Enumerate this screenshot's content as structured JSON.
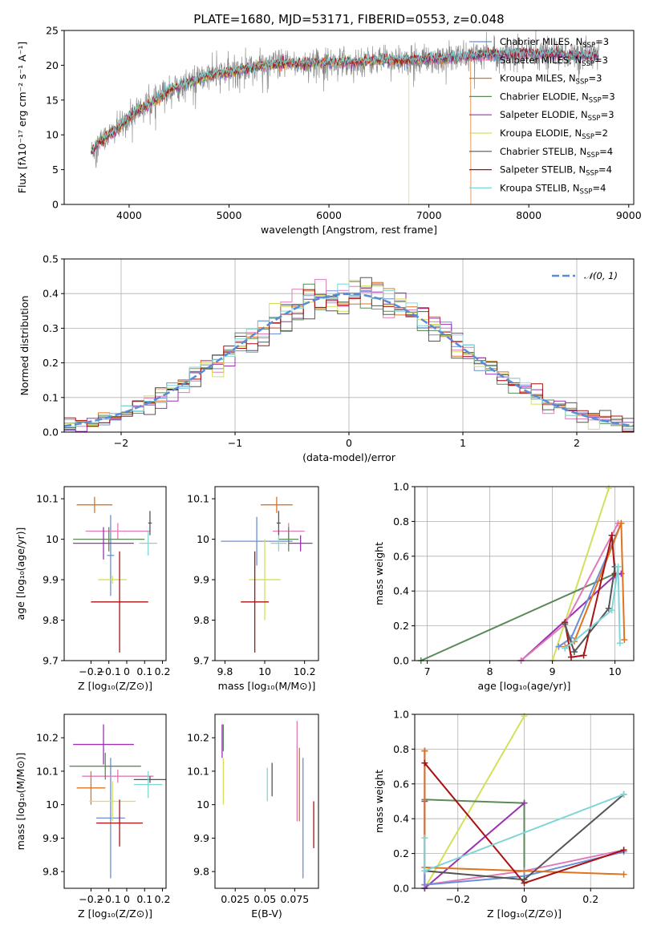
{
  "figure": {
    "title": "PLATE=1680, MJD=53171, FIBERID=0553, z=0.048"
  },
  "colors": {
    "Chabrier MILES": "#6a8fd8",
    "Salpeter MILES": "#e07ab8",
    "Kroupa MILES": "#e0731e",
    "Chabrier ELODIE": "#5a8a5a",
    "Salpeter ELODIE": "#9b30b0",
    "Kroupa ELODIE": "#d4e05a",
    "Chabrier STELIB": "#555555",
    "Salpeter STELIB": "#aa1111",
    "Kroupa STELIB": "#7fd6d6",
    "normal": "#5b8ad8",
    "spectrum": "#808080"
  },
  "chart_data": [
    {
      "id": "spectrum",
      "type": "line",
      "title": "PLATE=1680, MJD=53171, FIBERID=0553, z=0.048",
      "xlabel": "wavelength [Angstrom, rest frame]",
      "ylabel": "Flux [fλ10⁻¹⁷ erg cm⁻² s⁻¹ A⁻¹]",
      "xlim": [
        3350,
        9050
      ],
      "ylim": [
        0,
        25
      ],
      "xticks": [
        4000,
        5000,
        6000,
        7000,
        8000,
        9000
      ],
      "yticks": [
        0,
        5,
        10,
        15,
        20,
        25
      ],
      "grid": false,
      "legend_position": "right",
      "legend": [
        {
          "name": "Chabrier MILES",
          "nssp": "3"
        },
        {
          "name": "Salpeter MILES",
          "nssp": "3"
        },
        {
          "name": "Kroupa MILES",
          "nssp": "3"
        },
        {
          "name": "Chabrier ELODIE",
          "nssp": "3"
        },
        {
          "name": "Salpeter ELODIE",
          "nssp": "3"
        },
        {
          "name": "Kroupa ELODIE",
          "nssp": "2"
        },
        {
          "name": "Chabrier STELIB",
          "nssp": "4"
        },
        {
          "name": "Salpeter STELIB",
          "nssp": "4"
        },
        {
          "name": "Kroupa STELIB",
          "nssp": "4"
        }
      ],
      "continuum": {
        "x": [
          3620,
          3700,
          3800,
          3900,
          4000,
          4100,
          4200,
          4300,
          4400,
          4600,
          4800,
          5000,
          5200,
          5400,
          5600,
          5800,
          6000,
          6200,
          6400,
          6600,
          6800,
          7000,
          7200,
          7400,
          7600,
          7800,
          8000,
          8200,
          8400,
          8600,
          8700
        ],
        "y": [
          7.5,
          9.0,
          10.0,
          11.0,
          12.5,
          13.6,
          14.3,
          15.3,
          16.5,
          17.5,
          18.5,
          19.0,
          19.6,
          20.1,
          20.2,
          20.3,
          20.4,
          20.4,
          20.6,
          20.7,
          20.7,
          20.9,
          21.0,
          21.3,
          21.5,
          21.6,
          21.7,
          21.6,
          21.5,
          21.4,
          21.3
        ]
      },
      "model_cutoffs": {
        "Kroupa ELODIE": 6800,
        "Kroupa MILES": 7420
      }
    },
    {
      "id": "residuals",
      "type": "histogram",
      "xlabel": "(data-model)/error",
      "ylabel": "Normed distribution",
      "xlim": [
        -2.5,
        2.5
      ],
      "ylim": [
        0,
        0.5
      ],
      "xticks": [
        -2,
        -1,
        0,
        1,
        2
      ],
      "yticks": [
        0.0,
        0.1,
        0.2,
        0.3,
        0.4,
        0.5
      ],
      "grid": true,
      "legend_position": "top-right",
      "legend": [
        "𝒩(0, 1)"
      ],
      "bin_width": 0.1
    },
    {
      "id": "age-vs-Z",
      "type": "scatter",
      "xlabel": "Z [log₁₀(Z/Z⊙)]",
      "ylabel": "age  [log₁₀(age/yr)]",
      "xlim": [
        -0.35,
        0.22
      ],
      "ylim": [
        9.7,
        10.13
      ],
      "xticks": [
        -0.2,
        -0.1,
        0.0,
        0.1,
        0.2
      ],
      "yticks": [
        9.7,
        9.8,
        9.9,
        10.0,
        10.1
      ],
      "points": [
        {
          "model": "Chabrier MILES",
          "x": -0.09,
          "xerr": 0.02,
          "y": 9.96,
          "yerr": 0.1
        },
        {
          "model": "Salpeter MILES",
          "x": -0.05,
          "xerr": 0.18,
          "y": 10.02,
          "yerr": 0.02
        },
        {
          "model": "Kroupa MILES",
          "x": -0.18,
          "xerr": 0.1,
          "y": 10.085,
          "yerr": 0.02
        },
        {
          "model": "Chabrier ELODIE",
          "x": -0.1,
          "xerr": 0.2,
          "y": 10.0,
          "yerr": 0.03
        },
        {
          "model": "Salpeter ELODIE",
          "x": -0.13,
          "xerr": 0.17,
          "y": 9.99,
          "yerr": 0.04
        },
        {
          "model": "Kroupa ELODIE",
          "x": -0.08,
          "xerr": 0.08,
          "y": 9.9,
          "yerr": 0.01
        },
        {
          "model": "Chabrier STELIB",
          "x": 0.13,
          "xerr": 0.01,
          "y": 10.04,
          "yerr": 0.03
        },
        {
          "model": "Salpeter STELIB",
          "x": -0.04,
          "xerr": 0.16,
          "y": 9.845,
          "yerr": 0.125
        },
        {
          "model": "Kroupa STELIB",
          "x": 0.12,
          "xerr": 0.05,
          "y": 9.99,
          "yerr": 0.03
        }
      ]
    },
    {
      "id": "age-vs-mass",
      "type": "scatter",
      "xlabel": "mass [log₁₀(M/M⊙)]",
      "ylabel": "",
      "xlim": [
        9.75,
        10.27
      ],
      "ylim": [
        9.7,
        10.13
      ],
      "xticks": [
        9.8,
        10.0,
        10.2
      ],
      "yticks": [
        9.7,
        9.8,
        9.9,
        10.0,
        10.1
      ],
      "points": [
        {
          "model": "Chabrier MILES",
          "x": 9.96,
          "xerr": 0.18,
          "y": 9.995,
          "yerr": 0.06
        },
        {
          "model": "Salpeter MILES",
          "x": 10.12,
          "xerr": 0.08,
          "y": 10.02,
          "yerr": 0.02
        },
        {
          "model": "Kroupa MILES",
          "x": 10.06,
          "xerr": 0.08,
          "y": 10.085,
          "yerr": 0.02
        },
        {
          "model": "Chabrier ELODIE",
          "x": 10.12,
          "xerr": 0.05,
          "y": 10.0,
          "yerr": 0.03
        },
        {
          "model": "Salpeter ELODIE",
          "x": 10.18,
          "xerr": 0.06,
          "y": 9.99,
          "yerr": 0.02
        },
        {
          "model": "Kroupa ELODIE",
          "x": 10.0,
          "xerr": 0.08,
          "y": 9.9,
          "yerr": 0.1
        },
        {
          "model": "Chabrier STELIB",
          "x": 10.07,
          "xerr": 0.01,
          "y": 10.04,
          "yerr": 0.03
        },
        {
          "model": "Salpeter STELIB",
          "x": 9.95,
          "xerr": 0.07,
          "y": 9.845,
          "yerr": 0.125
        },
        {
          "model": "Kroupa STELIB",
          "x": 10.07,
          "xerr": 0.04,
          "y": 9.99,
          "yerr": 0.02
        }
      ]
    },
    {
      "id": "weight-vs-age",
      "type": "line",
      "xlabel": "age  [log₁₀(age/yr)]",
      "ylabel": "mass weight",
      "xlim": [
        6.8,
        10.3
      ],
      "ylim": [
        0,
        1.0
      ],
      "xticks": [
        7,
        8,
        9,
        10
      ],
      "yticks": [
        0.0,
        0.2,
        0.4,
        0.6,
        0.8,
        1.0
      ],
      "grid": true,
      "series": [
        {
          "model": "Kroupa ELODIE",
          "x": [
            9.0,
            9.9
          ],
          "y": [
            0.0,
            0.99
          ]
        },
        {
          "model": "Chabrier ELODIE",
          "x": [
            6.9,
            10.0,
            10.05
          ],
          "y": [
            0.0,
            0.5,
            0.5
          ]
        },
        {
          "model": "Salpeter ELODIE",
          "x": [
            8.5,
            10.0,
            10.1
          ],
          "y": [
            0.0,
            0.49,
            0.5
          ]
        },
        {
          "model": "Salpeter MILES",
          "x": [
            8.5,
            9.2,
            10.05
          ],
          "y": [
            0.0,
            0.21,
            0.79
          ]
        },
        {
          "model": "Chabrier MILES",
          "x": [
            9.1,
            9.3,
            10.1
          ],
          "y": [
            0.08,
            0.13,
            0.79
          ]
        },
        {
          "model": "Kroupa MILES",
          "x": [
            9.2,
            9.35,
            10.1,
            10.15
          ],
          "y": [
            0.08,
            0.11,
            0.79,
            0.12
          ]
        },
        {
          "model": "Salpeter STELIB",
          "x": [
            9.2,
            9.3,
            9.5,
            9.95,
            10.0
          ],
          "y": [
            0.22,
            0.02,
            0.03,
            0.72,
            0.5
          ]
        },
        {
          "model": "Chabrier STELIB",
          "x": [
            9.2,
            9.35,
            9.9,
            10.0
          ],
          "y": [
            0.21,
            0.05,
            0.3,
            0.54
          ]
        },
        {
          "model": "Kroupa STELIB",
          "x": [
            9.2,
            9.95,
            10.05,
            10.08
          ],
          "y": [
            0.07,
            0.29,
            0.54,
            0.1
          ]
        }
      ]
    },
    {
      "id": "mass-vs-Z",
      "type": "scatter",
      "xlabel": "Z [log₁₀(Z/Z⊙)]",
      "ylabel": "mass [log₁₀(M/M⊙)]",
      "xlim": [
        -0.35,
        0.22
      ],
      "ylim": [
        9.75,
        10.27
      ],
      "xticks": [
        -0.2,
        -0.1,
        0.0,
        0.1,
        0.2
      ],
      "yticks": [
        9.8,
        9.9,
        10.0,
        10.1,
        10.2
      ],
      "points": [
        {
          "model": "Chabrier MILES",
          "x": -0.09,
          "xerr": 0.08,
          "y": 9.96,
          "yerr": 0.18
        },
        {
          "model": "Salpeter MILES",
          "x": -0.05,
          "xerr": 0.2,
          "y": 10.085,
          "yerr": 0.02
        },
        {
          "model": "Kroupa MILES",
          "x": -0.2,
          "xerr": 0.08,
          "y": 10.05,
          "yerr": 0.05
        },
        {
          "model": "Chabrier ELODIE",
          "x": -0.12,
          "xerr": 0.2,
          "y": 10.115,
          "yerr": 0.04
        },
        {
          "model": "Salpeter ELODIE",
          "x": -0.13,
          "xerr": 0.17,
          "y": 10.18,
          "yerr": 0.06
        },
        {
          "model": "Kroupa ELODIE",
          "x": -0.08,
          "xerr": 0.13,
          "y": 10.01,
          "yerr": 0.06
        },
        {
          "model": "Chabrier STELIB",
          "x": 0.13,
          "xerr": 0.09,
          "y": 10.075,
          "yerr": 0.01
        },
        {
          "model": "Salpeter STELIB",
          "x": -0.04,
          "xerr": 0.13,
          "y": 9.945,
          "yerr": 0.07
        },
        {
          "model": "Kroupa STELIB",
          "x": 0.12,
          "xerr": 0.08,
          "y": 10.06,
          "yerr": 0.04
        }
      ]
    },
    {
      "id": "mass-vs-ebv",
      "type": "scatter",
      "xlabel": "E(B-V)",
      "ylabel": "",
      "xlim": [
        0.008,
        0.095
      ],
      "ylim": [
        9.75,
        10.27
      ],
      "xticks": [
        0.025,
        0.05,
        0.075
      ],
      "yticks": [
        9.8,
        9.9,
        10.0,
        10.1,
        10.2
      ],
      "points": [
        {
          "model": "Chabrier MILES",
          "x": 0.082,
          "xerr": 0.0,
          "y": 9.96,
          "yerr": 0.18
        },
        {
          "model": "Salpeter MILES",
          "x": 0.077,
          "xerr": 0.0,
          "y": 10.1,
          "yerr": 0.15
        },
        {
          "model": "Kroupa MILES",
          "x": 0.079,
          "xerr": 0.0,
          "y": 10.06,
          "yerr": 0.11
        },
        {
          "model": "Chabrier ELODIE",
          "x": 0.015,
          "xerr": 0.0,
          "y": 10.2,
          "yerr": 0.04
        },
        {
          "model": "Salpeter ELODIE",
          "x": 0.014,
          "xerr": 0.0,
          "y": 10.19,
          "yerr": 0.05
        },
        {
          "model": "Kroupa ELODIE",
          "x": 0.015,
          "xerr": 0.0,
          "y": 10.07,
          "yerr": 0.07
        },
        {
          "model": "Chabrier STELIB",
          "x": 0.056,
          "xerr": 0.0,
          "y": 10.075,
          "yerr": 0.05
        },
        {
          "model": "Salpeter STELIB",
          "x": 0.091,
          "xerr": 0.0,
          "y": 9.94,
          "yerr": 0.07
        },
        {
          "model": "Kroupa STELIB",
          "x": 0.052,
          "xerr": 0.0,
          "y": 10.06,
          "yerr": 0.05
        }
      ]
    },
    {
      "id": "weight-vs-Z",
      "type": "line",
      "xlabel": "Z [log₁₀(Z/Z⊙)]",
      "ylabel": "mass weight",
      "xlim": [
        -0.33,
        0.33
      ],
      "ylim": [
        0,
        1.0
      ],
      "xticks": [
        -0.2,
        0.0,
        0.2
      ],
      "yticks": [
        0.0,
        0.2,
        0.4,
        0.6,
        0.8,
        1.0
      ],
      "grid": true,
      "series": [
        {
          "model": "Kroupa ELODIE",
          "x": [
            -0.3,
            0.0
          ],
          "y": [
            0.0,
            0.99
          ]
        },
        {
          "model": "Chabrier ELODIE",
          "x": [
            -0.3,
            -0.3,
            0.0,
            0.0
          ],
          "y": [
            0.0,
            0.51,
            0.49,
            0.05
          ]
        },
        {
          "model": "Salpeter ELODIE",
          "x": [
            -0.3,
            -0.3,
            -0.3,
            0.0
          ],
          "y": [
            0.5,
            0.02,
            0.0,
            0.49
          ]
        },
        {
          "model": "Salpeter MILES",
          "x": [
            -0.3,
            -0.3,
            0.0,
            0.3
          ],
          "y": [
            0.79,
            0.02,
            0.1,
            0.22
          ]
        },
        {
          "model": "Chabrier MILES",
          "x": [
            -0.3,
            -0.3,
            0.0,
            0.3
          ],
          "y": [
            0.79,
            0.02,
            0.07,
            0.21
          ]
        },
        {
          "model": "Kroupa MILES",
          "x": [
            -0.3,
            -0.3,
            0.3
          ],
          "y": [
            0.79,
            0.12,
            0.08
          ]
        },
        {
          "model": "Salpeter STELIB",
          "x": [
            -0.3,
            0.0,
            0.3
          ],
          "y": [
            0.72,
            0.03,
            0.22
          ]
        },
        {
          "model": "Chabrier STELIB",
          "x": [
            -0.3,
            0.0,
            0.3
          ],
          "y": [
            0.1,
            0.05,
            0.54
          ]
        },
        {
          "model": "Kroupa STELIB",
          "x": [
            -0.3,
            -0.3,
            0.3
          ],
          "y": [
            0.29,
            0.1,
            0.54
          ]
        }
      ]
    }
  ]
}
